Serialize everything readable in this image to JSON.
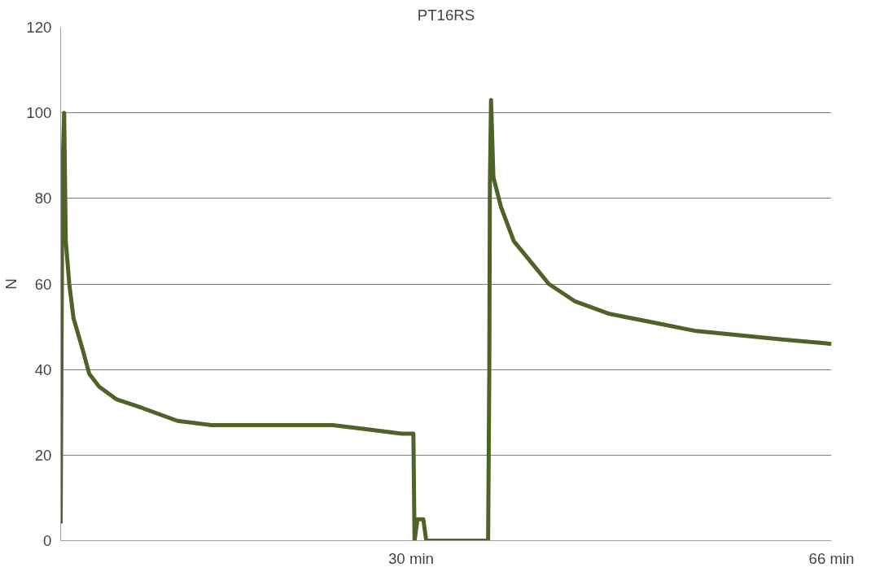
{
  "chart_data": {
    "type": "line",
    "title": "PT16RS",
    "ylabel": "N",
    "x": [
      0,
      0.15,
      0.3,
      0.44,
      0.74,
      1.1,
      1.85,
      2.45,
      3.3,
      4.8,
      7.0,
      10.0,
      12.9,
      18.9,
      23.3,
      26.3,
      29.2,
      30.2,
      30.3,
      30.55,
      31.05,
      31.3,
      36.6,
      36.7,
      36.75,
      36.85,
      37.05,
      37.7,
      38.8,
      40.3,
      41.8,
      44.0,
      47.0,
      50.7,
      54.4,
      58.1,
      61.8,
      66.0
    ],
    "series": [
      {
        "color": "#4f6228",
        "values": [
          4,
          85,
          100,
          70,
          60,
          52,
          45,
          39,
          36,
          33,
          31,
          28,
          27,
          27,
          27,
          26,
          25,
          25,
          0,
          5,
          5,
          0,
          0,
          40,
          83,
          103,
          85,
          78,
          70,
          65,
          60,
          56,
          53,
          51,
          49,
          48,
          47,
          46
        ]
      }
    ],
    "xlim": [
      0,
      66
    ],
    "xticks": [
      {
        "value": 30,
        "label": "30 min"
      },
      {
        "value": 66,
        "label": "66 min"
      }
    ],
    "ylim": [
      0,
      120
    ],
    "yticks": [
      0,
      20,
      40,
      60,
      80,
      100,
      120
    ],
    "grid": "y",
    "marker": "none",
    "line_style": "solid"
  }
}
